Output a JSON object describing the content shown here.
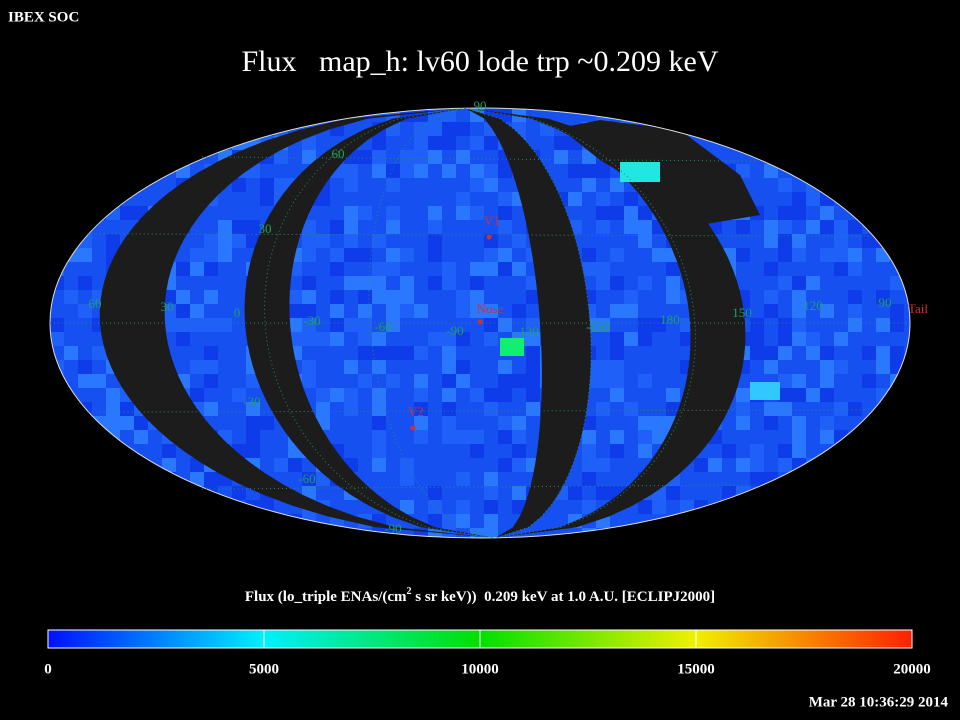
{
  "header": {
    "org": "IBEX SOC",
    "title": "Flux   map_h: lv60 lode trp ~0.209 keV"
  },
  "map": {
    "longitude_labels": [
      60,
      30,
      0,
      -30,
      -60,
      -90,
      -120,
      -150,
      180,
      150,
      120,
      90
    ],
    "latitude_labels": [
      90,
      60,
      30,
      -30,
      -60,
      -90
    ],
    "markers": [
      "V1",
      "Nose",
      "V2",
      "Tail"
    ]
  },
  "colorbar": {
    "label_parts": [
      "Flux (lo_triple ENAs/(cm",
      "2",
      " s sr keV))  0.209 keV at 1.0 A.U. [ECLIPJ2000]"
    ],
    "lim": [
      0,
      20000
    ],
    "ticks": [
      0,
      5000,
      10000,
      15000,
      20000
    ]
  },
  "timestamp": "Mar 28 10:36:29 2014"
}
